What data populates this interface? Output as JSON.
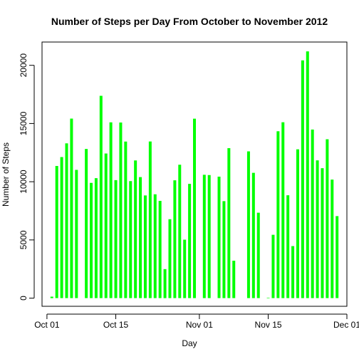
{
  "chart_data": {
    "type": "bar",
    "style": "vertical-line-histogram",
    "title": "Number of Steps per Day From October to November 2012",
    "xlabel": "Day",
    "ylabel": "Number of Steps",
    "bar_color": "#00ff00",
    "axis_color": "#000000",
    "grid": false,
    "legend": "none",
    "xlim": [
      "2012-09-30",
      "2012-12-01"
    ],
    "ylim": [
      -700,
      22000
    ],
    "x_ticks": [
      {
        "date": "2012-10-01",
        "label": "Oct 01"
      },
      {
        "date": "2012-10-15",
        "label": "Oct 15"
      },
      {
        "date": "2012-11-01",
        "label": "Nov 01"
      },
      {
        "date": "2012-11-15",
        "label": "Nov 15"
      },
      {
        "date": "2012-12-01",
        "label": "Dec 01"
      }
    ],
    "y_ticks": [
      {
        "value": 0,
        "label": "0"
      },
      {
        "value": 5000,
        "label": "5000"
      },
      {
        "value": 10000,
        "label": "10000"
      },
      {
        "value": 15000,
        "label": "15000"
      },
      {
        "value": 20000,
        "label": "20000"
      }
    ],
    "x": [
      "2012-10-01",
      "2012-10-02",
      "2012-10-03",
      "2012-10-04",
      "2012-10-05",
      "2012-10-06",
      "2012-10-07",
      "2012-10-08",
      "2012-10-09",
      "2012-10-10",
      "2012-10-11",
      "2012-10-12",
      "2012-10-13",
      "2012-10-14",
      "2012-10-15",
      "2012-10-16",
      "2012-10-17",
      "2012-10-18",
      "2012-10-19",
      "2012-10-20",
      "2012-10-21",
      "2012-10-22",
      "2012-10-23",
      "2012-10-24",
      "2012-10-25",
      "2012-10-26",
      "2012-10-27",
      "2012-10-28",
      "2012-10-29",
      "2012-10-30",
      "2012-10-31",
      "2012-11-01",
      "2012-11-02",
      "2012-11-03",
      "2012-11-04",
      "2012-11-05",
      "2012-11-06",
      "2012-11-07",
      "2012-11-08",
      "2012-11-09",
      "2012-11-10",
      "2012-11-11",
      "2012-11-12",
      "2012-11-13",
      "2012-11-14",
      "2012-11-15",
      "2012-11-16",
      "2012-11-17",
      "2012-11-18",
      "2012-11-19",
      "2012-11-20",
      "2012-11-21",
      "2012-11-22",
      "2012-11-23",
      "2012-11-24",
      "2012-11-25",
      "2012-11-26",
      "2012-11-27",
      "2012-11-28",
      "2012-11-29",
      "2012-11-30"
    ],
    "values": [
      0,
      126,
      11352,
      12116,
      13294,
      15420,
      11015,
      0,
      12811,
      9900,
      10304,
      17382,
      12426,
      15098,
      10139,
      15084,
      13452,
      10056,
      11829,
      10395,
      8821,
      13460,
      8918,
      8355,
      2492,
      6778,
      10119,
      11458,
      5018,
      9819,
      15414,
      0,
      10600,
      10571,
      0,
      10439,
      8334,
      12883,
      3219,
      0,
      0,
      12608,
      10765,
      7336,
      0,
      41,
      5441,
      14339,
      15110,
      8841,
      4472,
      12787,
      20427,
      21194,
      14478,
      11834,
      11162,
      13646,
      10183,
      7047,
      0
    ]
  }
}
